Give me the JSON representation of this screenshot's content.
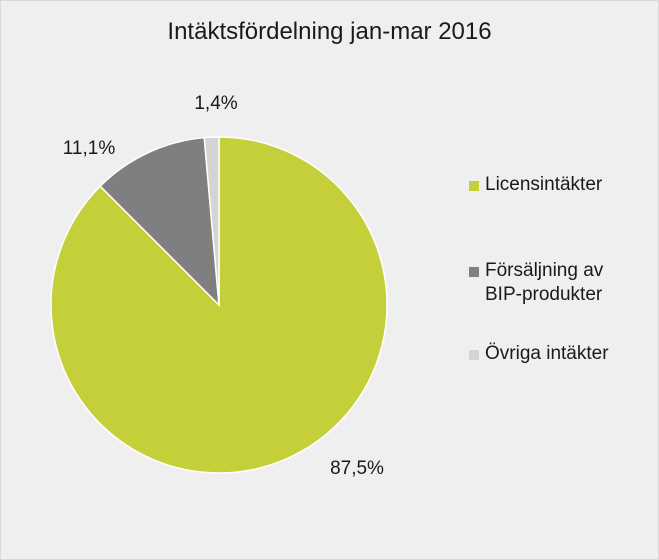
{
  "chart_data": {
    "type": "pie",
    "title": "Intäktsfördelning jan-mar 2016",
    "slices": [
      {
        "label": "Licensintäkter",
        "value": 87.5,
        "value_label": "87,5%",
        "color": "#c5cf3a"
      },
      {
        "label": "Försäljning av\nBIP-produkter",
        "value": 11.1,
        "value_label": "11,1%",
        "color": "#7f7f7f"
      },
      {
        "label": "Övriga intäkter",
        "value": 1.4,
        "value_label": "1,4%",
        "color": "#d4d4d4"
      }
    ],
    "start_angle_deg": 0,
    "direction": "clockwise",
    "legend_position": "right"
  }
}
